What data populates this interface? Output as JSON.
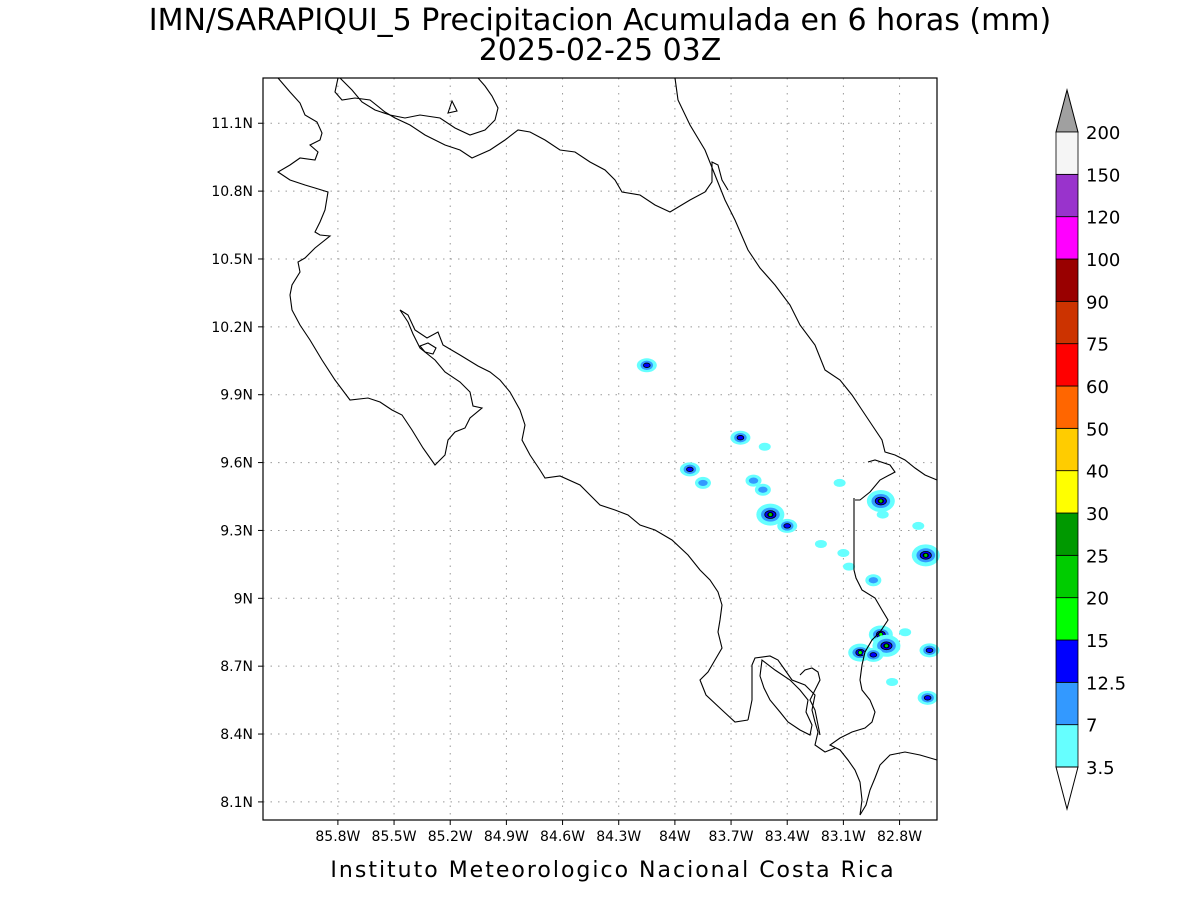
{
  "title": {
    "line1": "IMN/SARAPIQUI_5 Precipitacion Acumulada en 6 horas (mm)",
    "line2": "2025-02-25 03Z"
  },
  "footer": "Instituto Meteorologico Nacional Costa Rica",
  "map": {
    "lon_range": [
      -86.2,
      -82.6
    ],
    "lat_range": [
      8.02,
      11.3
    ],
    "x_ticks": [
      {
        "label": "85.8W",
        "value": -85.8
      },
      {
        "label": "85.5W",
        "value": -85.5
      },
      {
        "label": "85.2W",
        "value": -85.2
      },
      {
        "label": "84.9W",
        "value": -84.9
      },
      {
        "label": "84.6W",
        "value": -84.6
      },
      {
        "label": "84.3W",
        "value": -84.3
      },
      {
        "label": "84W",
        "value": -84.0
      },
      {
        "label": "83.7W",
        "value": -83.7
      },
      {
        "label": "83.4W",
        "value": -83.4
      },
      {
        "label": "83.1W",
        "value": -83.1
      },
      {
        "label": "82.8W",
        "value": -82.8
      }
    ],
    "y_ticks": [
      {
        "label": "8.1N",
        "value": 8.1
      },
      {
        "label": "8.4N",
        "value": 8.4
      },
      {
        "label": "8.7N",
        "value": 8.7
      },
      {
        "label": "9N",
        "value": 9.0
      },
      {
        "label": "9.3N",
        "value": 9.3
      },
      {
        "label": "9.6N",
        "value": 9.6
      },
      {
        "label": "9.9N",
        "value": 9.9
      },
      {
        "label": "10.2N",
        "value": 10.2
      },
      {
        "label": "10.5N",
        "value": 10.5
      },
      {
        "label": "10.8N",
        "value": 10.8
      },
      {
        "label": "11.1N",
        "value": 11.1
      }
    ],
    "grid": true,
    "precip_cells": [
      {
        "lon": -84.15,
        "lat": 10.03,
        "level": 2
      },
      {
        "lon": -83.65,
        "lat": 9.71,
        "level": 2
      },
      {
        "lon": -83.52,
        "lat": 9.67,
        "level": 0
      },
      {
        "lon": -83.92,
        "lat": 9.57,
        "level": 2
      },
      {
        "lon": -83.85,
        "lat": 9.51,
        "level": 1
      },
      {
        "lon": -83.58,
        "lat": 9.52,
        "level": 1
      },
      {
        "lon": -83.53,
        "lat": 9.48,
        "level": 1
      },
      {
        "lon": -83.49,
        "lat": 9.37,
        "level": 4
      },
      {
        "lon": -83.4,
        "lat": 9.32,
        "level": 2
      },
      {
        "lon": -83.22,
        "lat": 9.24,
        "level": 0
      },
      {
        "lon": -83.1,
        "lat": 9.2,
        "level": 0
      },
      {
        "lon": -83.07,
        "lat": 9.14,
        "level": 0
      },
      {
        "lon": -83.12,
        "lat": 9.51,
        "level": 0
      },
      {
        "lon": -82.9,
        "lat": 9.43,
        "level": 4
      },
      {
        "lon": -82.89,
        "lat": 9.37,
        "level": 0
      },
      {
        "lon": -82.7,
        "lat": 9.32,
        "level": 0
      },
      {
        "lon": -82.66,
        "lat": 9.19,
        "level": 4
      },
      {
        "lon": -82.94,
        "lat": 9.08,
        "level": 1
      },
      {
        "lon": -82.9,
        "lat": 8.84,
        "level": 3
      },
      {
        "lon": -82.87,
        "lat": 8.79,
        "level": 4
      },
      {
        "lon": -83.01,
        "lat": 8.76,
        "level": 3
      },
      {
        "lon": -82.94,
        "lat": 8.75,
        "level": 2
      },
      {
        "lon": -82.77,
        "lat": 8.85,
        "level": 0
      },
      {
        "lon": -82.64,
        "lat": 8.77,
        "level": 2
      },
      {
        "lon": -82.84,
        "lat": 8.63,
        "level": 0
      },
      {
        "lon": -82.65,
        "lat": 8.56,
        "level": 2
      }
    ]
  },
  "legend": {
    "labels": [
      "3.5",
      "7",
      "12.5",
      "15",
      "20",
      "25",
      "30",
      "40",
      "50",
      "60",
      "75",
      "90",
      "100",
      "120",
      "150",
      "200"
    ],
    "colors": [
      "#66ffff",
      "#3399ff",
      "#0000ff",
      "#00ff00",
      "#00cc00",
      "#009900",
      "#ffff00",
      "#ffcc00",
      "#ff6600",
      "#ff0000",
      "#cc3300",
      "#990000",
      "#ff00ff",
      "#9933cc",
      "#f5f5f5"
    ],
    "over_color": "#a0a0a0",
    "under_color": "#ffffff"
  },
  "colors": {
    "coast": "#000000",
    "grid": "#999999"
  }
}
